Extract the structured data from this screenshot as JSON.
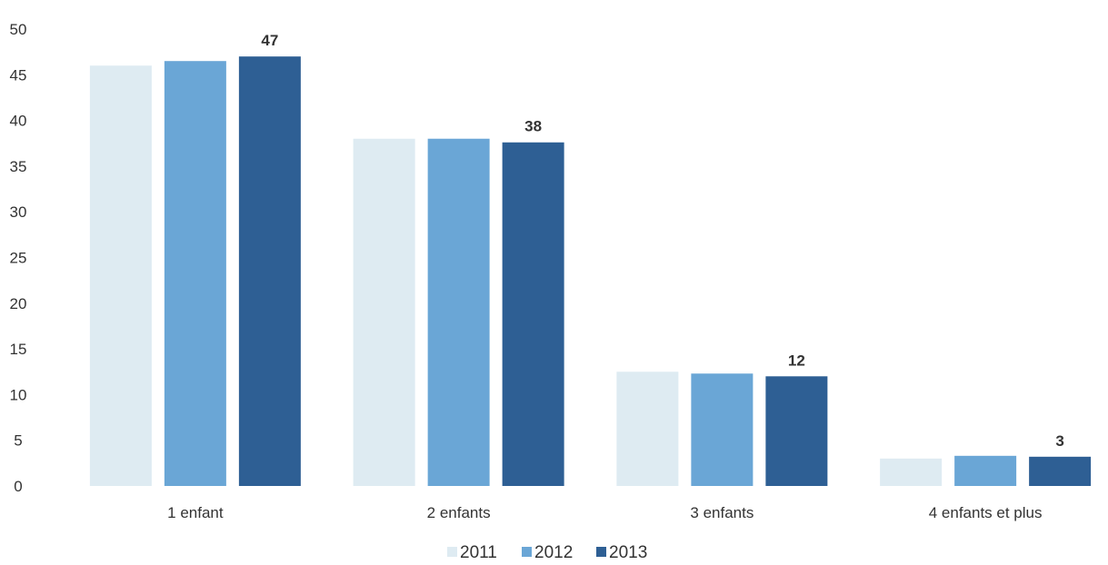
{
  "chart_data": {
    "type": "bar",
    "categories": [
      "1 enfant",
      "2 enfants",
      "3 enfants",
      "4 enfants et plus"
    ],
    "series": [
      {
        "name": "2011",
        "color": "#deebf2",
        "values": [
          46,
          38,
          12.5,
          3
        ]
      },
      {
        "name": "2012",
        "color": "#6aa6d6",
        "values": [
          46.5,
          38,
          12.3,
          3.3
        ]
      },
      {
        "name": "2013",
        "color": "#2e5f94",
        "values": [
          47,
          37.6,
          12,
          3.2
        ]
      }
    ],
    "data_labels": [
      "47",
      "38",
      "12",
      "3"
    ],
    "yticks": [
      "0",
      "5",
      "10",
      "15",
      "20",
      "25",
      "30",
      "35",
      "40",
      "45",
      "50"
    ],
    "ylim": [
      0,
      50
    ],
    "grid": false,
    "legend_position": "bottom"
  }
}
